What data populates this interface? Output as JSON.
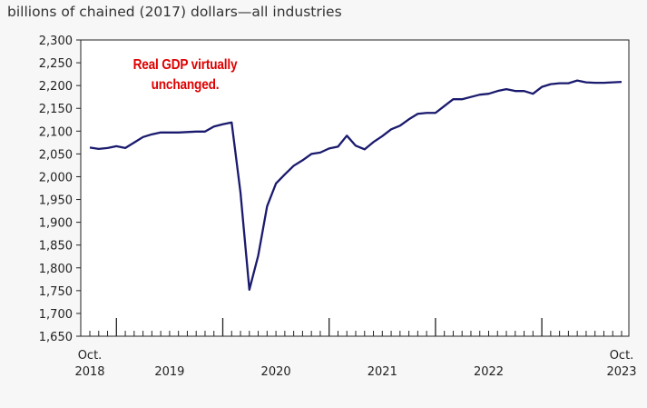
{
  "chart_data": {
    "type": "line",
    "ylabel": "billions of chained (2017) dollars—all industries",
    "annotation": [
      "Real GDP virtually",
      "unchanged."
    ],
    "ylim": [
      1650,
      2300
    ],
    "y_ticks": [
      "1,650",
      "1,700",
      "1,750",
      "1,800",
      "1,850",
      "1,900",
      "1,950",
      "2,000",
      "2,050",
      "2,100",
      "2,150",
      "2,200",
      "2,250",
      "2,300"
    ],
    "x_labels": [
      {
        "line1": "Oct.",
        "line2": "2018"
      },
      {
        "line1": "",
        "line2": "2019"
      },
      {
        "line1": "",
        "line2": "2020"
      },
      {
        "line1": "",
        "line2": "2021"
      },
      {
        "line1": "",
        "line2": "2022"
      },
      {
        "line1": "Oct.",
        "line2": "2023"
      }
    ],
    "line_color": "#1a1a6e",
    "series": [
      {
        "x": [
          "2018-10",
          "2018-11",
          "2018-12",
          "2019-01",
          "2019-02",
          "2019-03",
          "2019-04",
          "2019-05",
          "2019-06",
          "2019-07",
          "2019-08",
          "2019-09",
          "2019-10",
          "2019-11",
          "2019-12",
          "2020-01",
          "2020-02",
          "2020-03",
          "2020-04",
          "2020-05",
          "2020-06",
          "2020-07",
          "2020-08",
          "2020-09",
          "2020-10",
          "2020-11",
          "2020-12",
          "2021-01",
          "2021-02",
          "2021-03",
          "2021-04",
          "2021-05",
          "2021-06",
          "2021-07",
          "2021-08",
          "2021-09",
          "2021-10",
          "2021-11",
          "2021-12",
          "2022-01",
          "2022-02",
          "2022-03",
          "2022-04",
          "2022-05",
          "2022-06",
          "2022-07",
          "2022-08",
          "2022-09",
          "2022-10",
          "2022-11",
          "2022-12",
          "2023-01",
          "2023-02",
          "2023-03",
          "2023-04",
          "2023-05",
          "2023-06",
          "2023-07",
          "2023-08",
          "2023-09",
          "2023-10"
        ],
        "values": [
          2064,
          2061,
          2063,
          2067,
          2063,
          2075,
          2087,
          2093,
          2097,
          2097,
          2097,
          2098,
          2099,
          2099,
          2110,
          2115,
          2119,
          1965,
          1752,
          1827,
          1935,
          1985,
          2005,
          2024,
          2036,
          2050,
          2053,
          2062,
          2066,
          2090,
          2068,
          2060,
          2076,
          2089,
          2104,
          2112,
          2126,
          2138,
          2140,
          2140,
          2155,
          2170,
          2170,
          2175,
          2180,
          2182,
          2188,
          2192,
          2188,
          2188,
          2182,
          2197,
          2203,
          2205,
          2205,
          2211,
          2207,
          2206,
          2206,
          2207,
          2208
        ]
      }
    ]
  }
}
